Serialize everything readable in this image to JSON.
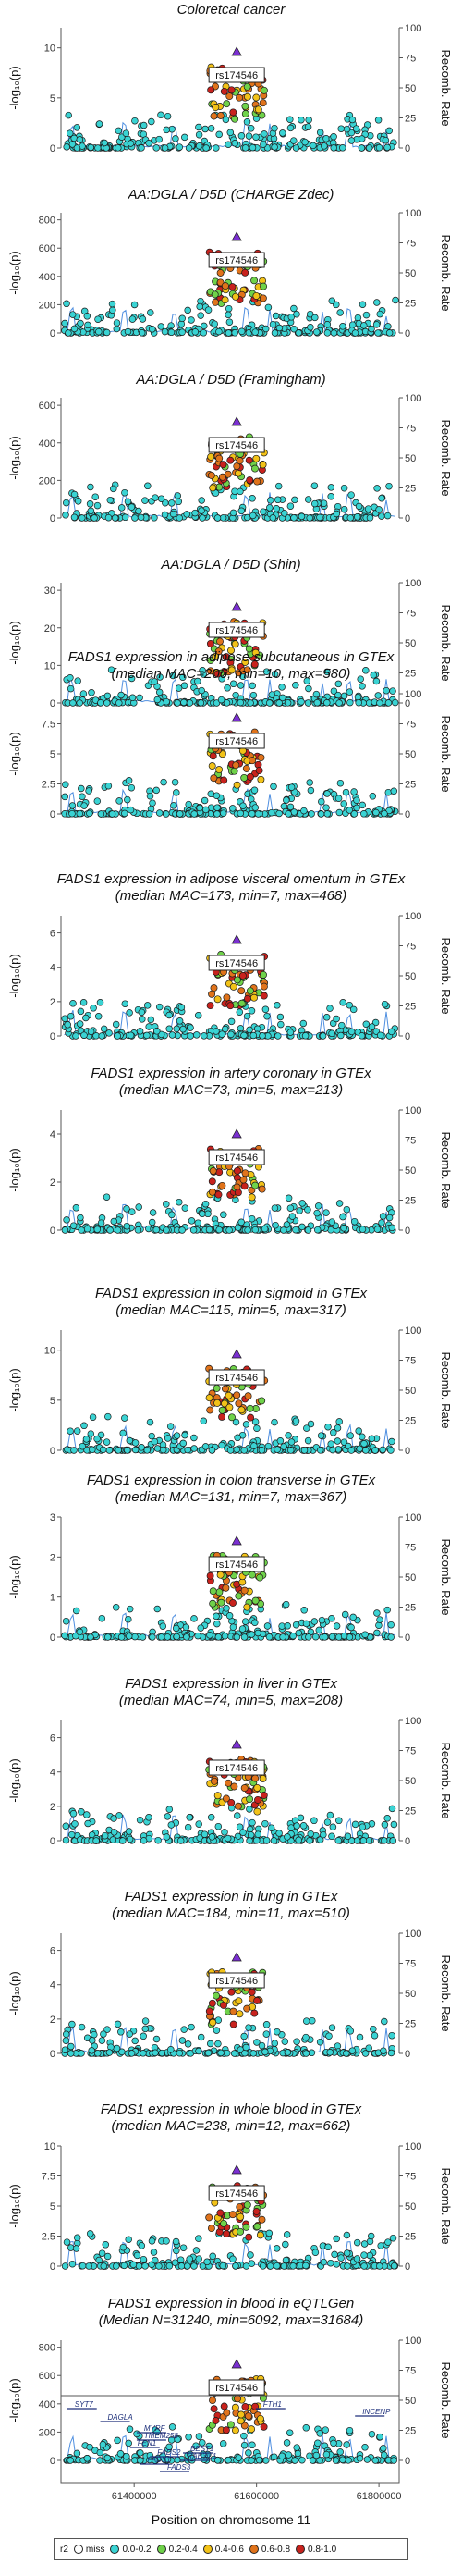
{
  "figure": {
    "x_axis_title": "Position on chromosome 11",
    "x_ticks": [
      "61400000",
      "61600000",
      "61800000"
    ],
    "y_axis_label": "-log₁₀(p)",
    "recomb_axis_label": "Recomb. Rate",
    "recomb_ticks": [
      "0",
      "25",
      "50",
      "75",
      "100"
    ],
    "lead_snp": "rs174546",
    "legend": {
      "title": "r2",
      "items": [
        {
          "label": "miss",
          "color": "#ffffff"
        },
        {
          "label": "0.0-0.2",
          "color": "#3ad3d3"
        },
        {
          "label": "0.2-0.4",
          "color": "#6fd24a"
        },
        {
          "label": "0.4-0.6",
          "color": "#f2c218"
        },
        {
          "label": "0.6-0.8",
          "color": "#e0731b"
        },
        {
          "label": "0.8-1.0",
          "color": "#c8221d"
        }
      ]
    },
    "genes": [
      "SYT7",
      "DAGLA",
      "MYRF",
      "TMEM258",
      "FEN1",
      "FADS2",
      "FADS1",
      "FADS3",
      "RAB3IL1",
      "BEST1",
      "FTH1",
      "INCENP"
    ]
  },
  "chart_data": [
    {
      "type": "scatter",
      "title": "Coloretcal cancer",
      "title_line2": "",
      "ylim": [
        0,
        12
      ],
      "yticks": [
        "0",
        "5",
        "10"
      ]
    },
    {
      "type": "scatter",
      "title": "AA:DGLA / D5D (CHARGE Zdec)",
      "title_line2": "",
      "ylim": [
        0,
        850
      ],
      "yticks": [
        "0",
        "200",
        "400",
        "600",
        "800"
      ]
    },
    {
      "type": "scatter",
      "title": "AA:DGLA / D5D (Framingham)",
      "title_line2": "",
      "ylim": [
        0,
        640
      ],
      "yticks": [
        "0",
        "200",
        "400",
        "600"
      ]
    },
    {
      "type": "scatter",
      "title": "AA:DGLA / D5D (Shin)",
      "title_line2": "",
      "ylim": [
        0,
        32
      ],
      "yticks": [
        "0",
        "10",
        "20",
        "30"
      ]
    },
    {
      "type": "scatter",
      "title": "FADS1 expression in adipose subcutaneous in GTEx",
      "title_line2": "(median MAC=206, min=10, max=580)",
      "ylim": [
        0,
        10
      ],
      "yticks": [
        "0",
        "2.5",
        "5",
        "7.5"
      ]
    },
    {
      "type": "scatter",
      "title": "FADS1 expression in adipose visceral omentum in GTEx",
      "title_line2": "(median MAC=173, min=7, max=468)",
      "ylim": [
        0,
        7
      ],
      "yticks": [
        "0",
        "2",
        "4",
        "6"
      ]
    },
    {
      "type": "scatter",
      "title": "FADS1 expression in artery coronary in GTEx",
      "title_line2": "(median MAC=73, min=5, max=213)",
      "ylim": [
        0,
        5
      ],
      "yticks": [
        "0",
        "2",
        "4"
      ]
    },
    {
      "type": "scatter",
      "title": "FADS1 expression in colon sigmoid in GTEx",
      "title_line2": "(median MAC=115, min=5, max=317)",
      "ylim": [
        0,
        12
      ],
      "yticks": [
        "0",
        "5",
        "10"
      ]
    },
    {
      "type": "scatter",
      "title": "FADS1 expression in colon transverse in GTEx",
      "title_line2": "(median MAC=131, min=7, max=367)",
      "ylim": [
        0,
        3
      ],
      "yticks": [
        "0",
        "1",
        "2",
        "3"
      ]
    },
    {
      "type": "scatter",
      "title": "FADS1 expression in liver in GTEx",
      "title_line2": "(median MAC=74, min=5, max=208)",
      "ylim": [
        0,
        7
      ],
      "yticks": [
        "0",
        "2",
        "4",
        "6"
      ]
    },
    {
      "type": "scatter",
      "title": "FADS1 expression in lung in GTEx",
      "title_line2": "(median MAC=184, min=11, max=510)",
      "ylim": [
        0,
        7
      ],
      "yticks": [
        "0",
        "2",
        "4",
        "6"
      ]
    },
    {
      "type": "scatter",
      "title": "FADS1 expression in whole blood in GTEx",
      "title_line2": "(median MAC=238, min=12, max=662)",
      "ylim": [
        0,
        10
      ],
      "yticks": [
        "0",
        "2.5",
        "5",
        "7.5",
        "10"
      ]
    },
    {
      "type": "scatter",
      "title": "FADS1 expression in blood in eQTLGen",
      "title_line2": "(Median N=31240, min=6092, max=31684)",
      "ylim": [
        0,
        850
      ],
      "yticks": [
        "0",
        "200",
        "400",
        "600",
        "800"
      ]
    }
  ]
}
